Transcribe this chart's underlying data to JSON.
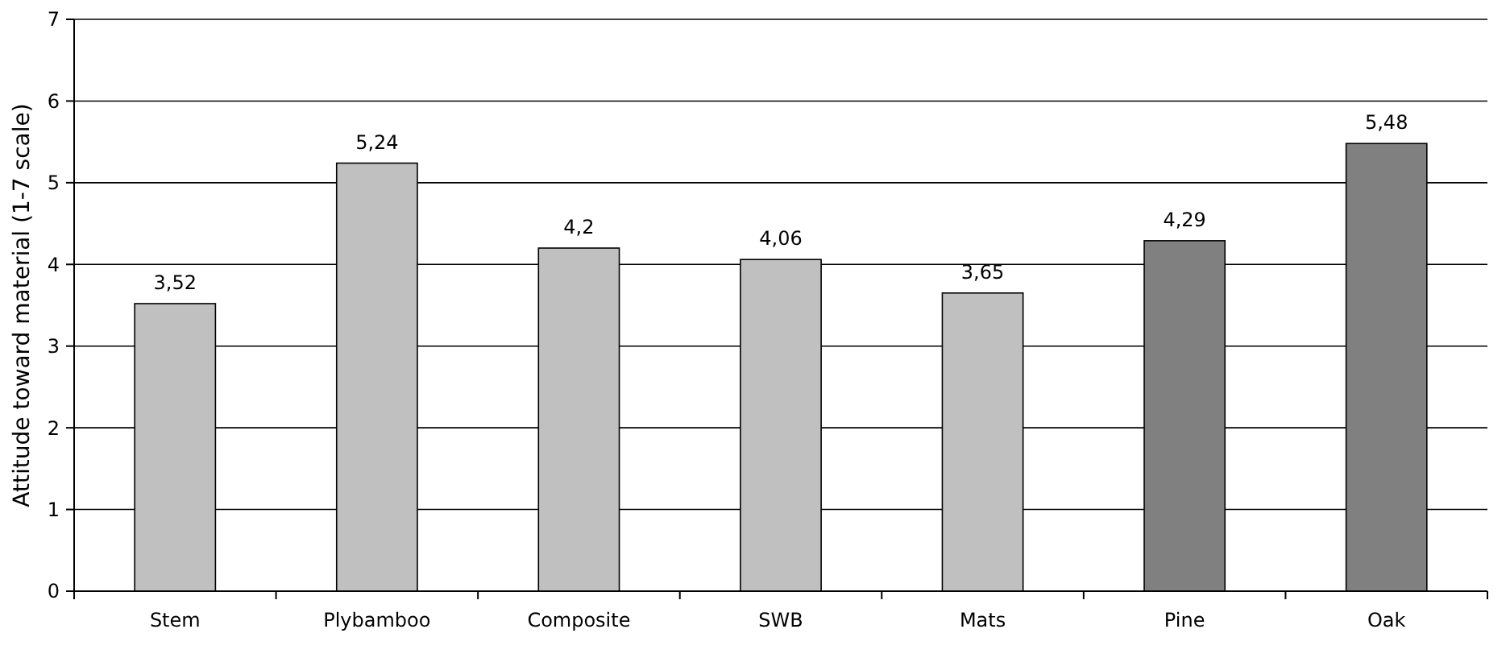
{
  "chart_data": {
    "type": "bar",
    "ylabel": "Attitude toward material (1-7 scale)",
    "categories": [
      "Stem",
      "Plybamboo",
      "Composite",
      "SWB",
      "Mats",
      "Pine",
      "Oak"
    ],
    "values": [
      3.52,
      5.24,
      4.2,
      4.06,
      3.65,
      4.29,
      5.48
    ],
    "colors": [
      "#c0c0c0",
      "#c0c0c0",
      "#c0c0c0",
      "#c0c0c0",
      "#c0c0c0",
      "#808080",
      "#808080"
    ],
    "value_labels": [
      "3,52",
      "5,24",
      "4,2",
      "4,06",
      "3,65",
      "4,29",
      "5,48"
    ],
    "ylim": [
      0,
      7
    ],
    "yticks": [
      0,
      1,
      2,
      3,
      4,
      5,
      6,
      7
    ],
    "grid": "y"
  }
}
